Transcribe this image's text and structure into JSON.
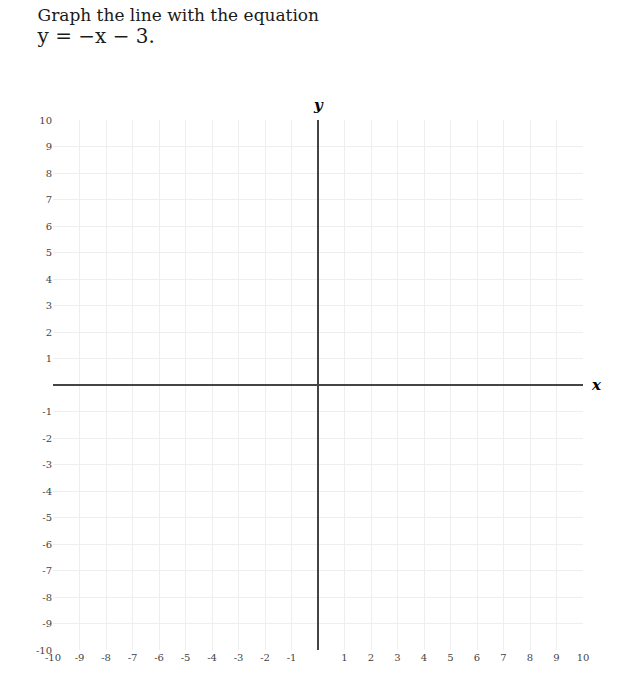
{
  "chart_data": {
    "type": "scatter",
    "title": "Graph the line with the equation",
    "subtitle": "y = −x − 3.",
    "xlabel": "x",
    "ylabel": "y",
    "xlim": [
      -10,
      10
    ],
    "ylim": [
      -10,
      10
    ],
    "xticks": [
      -10,
      -9,
      -8,
      -7,
      -6,
      -5,
      -4,
      -3,
      -2,
      -1,
      1,
      2,
      3,
      4,
      5,
      6,
      7,
      8,
      9,
      10
    ],
    "yticks": [
      -10,
      -9,
      -8,
      -7,
      -6,
      -5,
      -4,
      -3,
      -2,
      -1,
      1,
      2,
      3,
      4,
      5,
      6,
      7,
      8,
      9,
      10
    ],
    "grid": true
  }
}
